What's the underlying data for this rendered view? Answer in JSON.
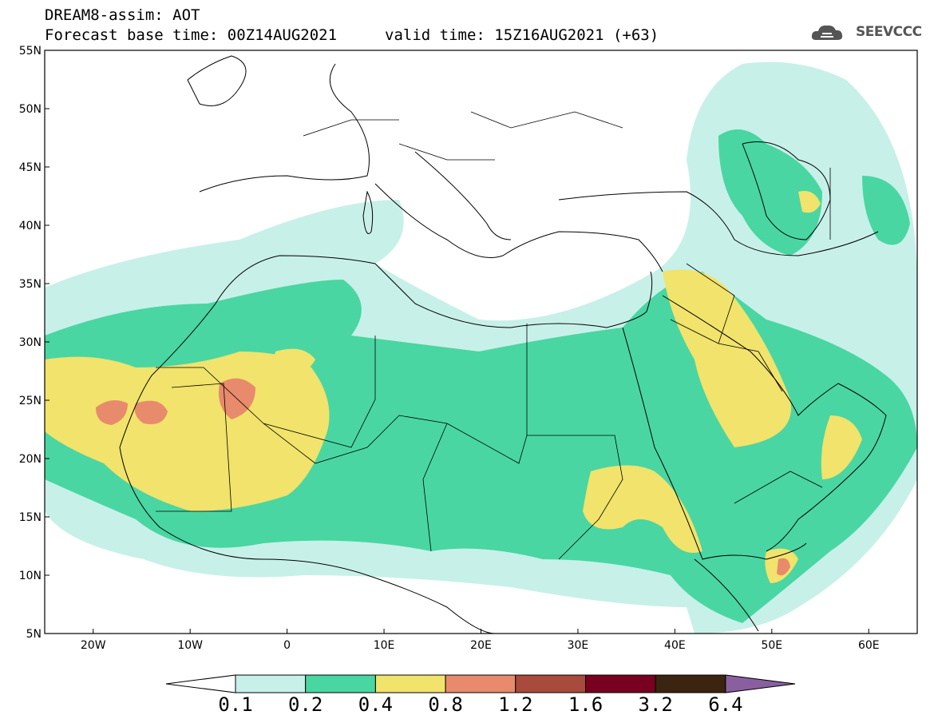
{
  "header": {
    "line1": "DREAM8-assim: AOT",
    "line2": "Forecast base time: 00Z14AUG2021",
    "valid": "valid time: 15Z16AUG2021 (+63)",
    "logo": "SEEVCCC"
  },
  "map": {
    "lat_labels": [
      "55N",
      "50N",
      "45N",
      "40N",
      "35N",
      "30N",
      "25N",
      "20N",
      "15N",
      "10N",
      "5N"
    ],
    "lon_labels": [
      "20W",
      "10W",
      "0",
      "10E",
      "20E",
      "30E",
      "40E",
      "50E",
      "60E"
    ],
    "extent": {
      "lon_min": -25,
      "lon_max": 65,
      "lat_min": 5,
      "lat_max": 55
    }
  },
  "colorbar": {
    "labels": [
      "0.1",
      "0.2",
      "0.4",
      "0.8",
      "1.2",
      "1.6",
      "3.2",
      "6.4"
    ],
    "colors": [
      "#ffffff",
      "#c7f0e8",
      "#49d6a2",
      "#f1e36b",
      "#e88a6c",
      "#a84a3c",
      "#780020",
      "#3b2410",
      "#8a5fa0"
    ]
  },
  "chart_data": {
    "type": "heatmap",
    "title": "DREAM8-assim: AOT",
    "variable": "AOT",
    "levels": [
      0.1,
      0.2,
      0.4,
      0.8,
      1.2,
      1.6,
      3.2,
      6.4
    ],
    "xlim": [
      -25,
      65
    ],
    "ylim": [
      5,
      55
    ]
  }
}
